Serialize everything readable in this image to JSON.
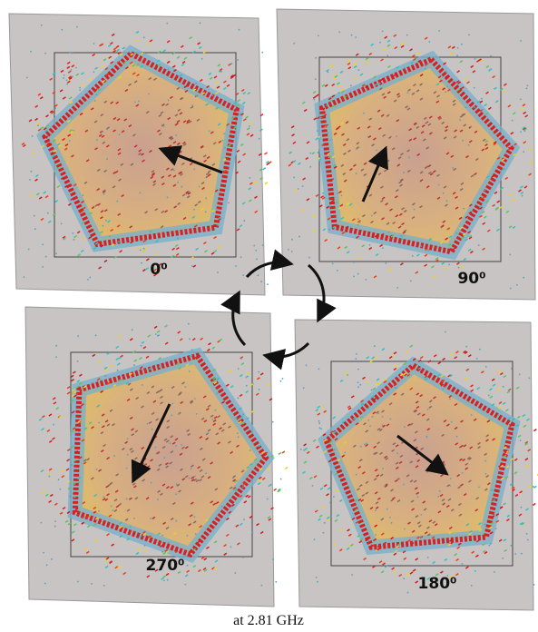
{
  "panels": [
    {
      "label": "0⁰"
    },
    {
      "label": "90⁰"
    },
    {
      "label": "270⁰"
    },
    {
      "label": "180⁰"
    }
  ],
  "caption": "at 2.81 GHz"
}
